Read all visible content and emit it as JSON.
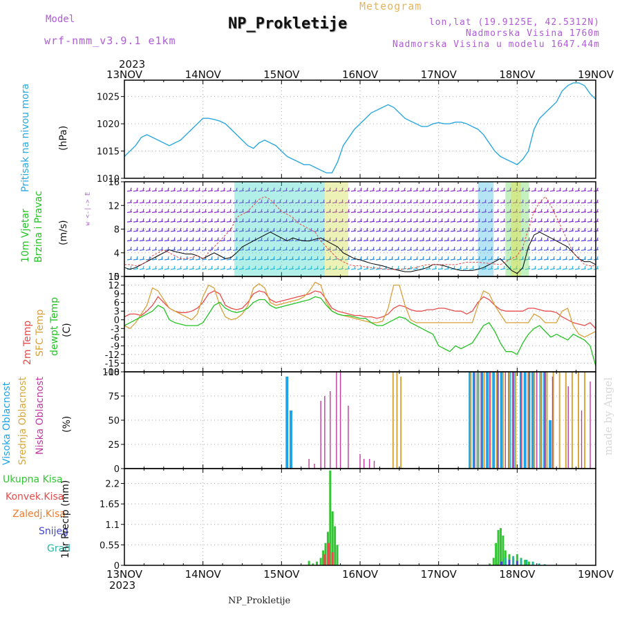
{
  "header": {
    "model_label": "Model",
    "model_name": "wrf-nmm_v3.9.1 e1km",
    "title": "NP_Prokletije",
    "subtitle": "Meteogram",
    "coords": "lon,lat (19.9125E, 42.5312N)",
    "altitude": "Nadmorska Visina 1760m",
    "model_altitude": "Nadmorska Visina u modelu 1647.44m",
    "year_top": "2023",
    "year_bottom": "2023",
    "footer_title": "NP_Prokletije",
    "watermark": "made by Angel"
  },
  "time_axis": {
    "labels": [
      "13NOV",
      "14NOV",
      "15NOV",
      "16NOV",
      "17NOV",
      "18NOV",
      "19NOV"
    ]
  },
  "panel_labels": {
    "pressure": [
      "Pritisak na nivou mora",
      "(hPa)"
    ],
    "wind": [
      "10m Vjetar",
      "Brzina i Pravac",
      "(m/s)"
    ],
    "wind_compass": "w <-|-> E",
    "wind_compass2": "s<-|->N",
    "temp": [
      "2m Temp",
      "SFC Temp",
      "dewpt Temp",
      "(C)"
    ],
    "cloud": [
      "Visoka Oblacnost",
      "Srednja Oblacnost",
      "Niska Oblacnost",
      "(%)"
    ],
    "precip": [
      "Ukupna Kisa",
      "Konvek.Kisa",
      "Zaledj.Kisa",
      "Snijeg",
      "Grad"
    ],
    "precip_unit": "1hr Precip (mm)"
  },
  "colors": {
    "pressure": "#2aa7e0",
    "temp2m": "#e84a4a",
    "sfc": "#d9a03a",
    "dew": "#22c322",
    "cloud_high": "#1fa4e8",
    "cloud_mid": "#d9a63a",
    "cloud_low": "#c0399e",
    "rain": "#33c433",
    "conv": "#e84a4a",
    "frz": "#f07a2a",
    "snow": "#4545d8",
    "grad": "#22b5a5",
    "title_purple": "#b05ad8"
  },
  "chart_data": [
    {
      "type": "line",
      "title": "Pritisak na nivou mora",
      "ylabel": "(hPa)",
      "ylim": [
        1010,
        1028
      ],
      "yticks": [
        1010,
        1015,
        1020,
        1025
      ],
      "series": [
        {
          "values": [
            1014,
            1015,
            1016,
            1017.5,
            1018,
            1017.5,
            1017,
            1016.5,
            1016,
            1016.5,
            1017,
            1018,
            1019,
            1020,
            1021,
            1021,
            1020.8,
            1020.5,
            1020,
            1019,
            1018,
            1017,
            1016,
            1015.5,
            1016.5,
            1017,
            1016.5,
            1016,
            1015,
            1014,
            1013.5,
            1013,
            1012.5,
            1012.5,
            1012,
            1011.5,
            1011,
            1011,
            1013,
            1016,
            1017.5,
            1019,
            1020,
            1021,
            1022,
            1022.5,
            1023,
            1023.5,
            1023,
            1022,
            1021,
            1020.5,
            1020,
            1019.5,
            1019.5,
            1020,
            1020.2,
            1020,
            1020,
            1020.3,
            1020.3,
            1020,
            1019.5,
            1019,
            1018,
            1016.5,
            1015,
            1014,
            1013.5,
            1013,
            1012.5,
            1013.5,
            1015,
            1019,
            1021,
            1022,
            1023,
            1024,
            1026,
            1027,
            1027.5,
            1027.5,
            1027,
            1025.5,
            1024.5
          ]
        }
      ]
    },
    {
      "type": "line",
      "title": "10m Vjetar Brzina i Pravac",
      "ylabel": "(m/s)",
      "ylim": [
        0,
        16
      ],
      "yticks": [
        0,
        4,
        8,
        12,
        16
      ],
      "series": [
        {
          "values": [
            1.5,
            1.2,
            1.5,
            2,
            2.5,
            3,
            3.5,
            4,
            4.5,
            4.2,
            4,
            3.8,
            3.8,
            3.5,
            3,
            3.5,
            4,
            3.5,
            3,
            3.2,
            4,
            5,
            5.5,
            6,
            6.5,
            7,
            7.5,
            7,
            6.5,
            6,
            6.5,
            6.2,
            6,
            6,
            6.3,
            6.5,
            6,
            5.5,
            5,
            4,
            3.5,
            3,
            2.8,
            2.5,
            2.2,
            2,
            1.8,
            1.5,
            1.2,
            1,
            0.8,
            0.8,
            1,
            1.2,
            1.5,
            2,
            2,
            1.8,
            1.5,
            1.2,
            1,
            1,
            1,
            1.2,
            1.5,
            2,
            2.5,
            3,
            2,
            1,
            0.5,
            1.5,
            5,
            7,
            7.5,
            7,
            6.5,
            6,
            5.5,
            5,
            4,
            3,
            2.5,
            2.5,
            2
          ]
        },
        {
          "values": [
            2,
            2,
            1.8,
            2,
            2.5,
            3.5,
            4,
            4.5,
            4,
            3.5,
            3,
            3,
            3.2,
            3.5,
            3,
            4,
            5,
            6,
            7,
            8,
            10,
            10.5,
            11,
            12,
            13,
            13.5,
            13,
            12,
            11,
            10.5,
            10,
            9,
            8.5,
            8,
            7.5,
            6,
            5,
            4,
            3,
            2.5,
            2,
            1.8,
            1.8,
            1.6,
            1.5,
            1.4,
            1.3,
            1.2,
            1.2,
            1.2,
            1.3,
            1.4,
            1.5,
            1.8,
            2,
            2,
            2,
            2,
            2,
            2,
            2.2,
            2.4,
            2.4,
            2.4,
            2.3,
            2.2,
            2.1,
            2,
            2.5,
            3,
            3.5,
            5,
            8,
            11,
            12.5,
            13.5,
            12,
            10,
            8,
            6,
            4,
            3,
            2,
            1.8,
            1.8
          ]
        }
      ]
    },
    {
      "type": "line",
      "title": "2m Temp / SFC Temp / dewpt Temp",
      "ylabel": "(C)",
      "ylim": [
        -18,
        15
      ],
      "yticks": [
        -18,
        -15,
        -12,
        -9,
        -6,
        -3,
        0,
        3,
        6,
        9,
        12,
        15
      ],
      "series": [
        {
          "name": "2m Temp",
          "values": [
            1,
            2,
            2,
            1.5,
            3,
            5,
            8,
            6,
            4,
            3,
            2.5,
            2.5,
            3,
            4,
            6,
            9,
            10,
            9,
            5,
            4,
            3.5,
            4,
            6,
            9,
            10,
            9.5,
            7,
            6,
            6.5,
            7,
            7.5,
            8,
            8.5,
            9,
            10,
            9.5,
            7,
            4,
            3,
            2.5,
            2,
            1.5,
            1.5,
            1,
            1,
            0.5,
            1,
            2,
            4,
            5,
            4.5,
            3.5,
            3,
            3,
            3.5,
            3.5,
            4,
            4,
            3.5,
            3,
            3,
            2,
            3,
            6,
            8,
            7,
            5,
            3.5,
            3,
            3,
            3,
            3,
            4,
            4,
            3.5,
            3,
            3,
            2.5,
            1,
            0,
            -1,
            -1.5,
            -2,
            -1,
            -3
          ]
        },
        {
          "name": "SFC Temp",
          "values": [
            -2,
            -3,
            -1,
            2,
            5,
            11,
            10,
            7,
            4,
            3,
            2,
            1,
            0,
            2,
            8,
            12,
            11,
            5,
            1,
            0,
            0.5,
            2,
            5,
            11,
            12.5,
            11,
            6,
            5,
            5.5,
            6,
            6.5,
            7,
            8,
            10,
            13,
            12,
            6,
            3,
            2,
            1.5,
            1,
            0.5,
            0,
            -0.5,
            -1,
            -1,
            -0.5,
            4,
            12,
            12,
            5,
            0,
            -1,
            -1,
            -1,
            -1,
            -1,
            -1,
            -1,
            -1,
            -1,
            -1,
            -1,
            5,
            10,
            9,
            5,
            2,
            -1,
            -1,
            -1,
            -1,
            -1,
            2,
            1,
            -1,
            -1,
            -1,
            3,
            4,
            -2,
            -5,
            -6,
            -5,
            -4
          ]
        },
        {
          "name": "dewpt Temp",
          "values": [
            -2,
            -1,
            0,
            1,
            2,
            3,
            5,
            4,
            0,
            -1,
            -1.5,
            -2,
            -2,
            -2,
            -1,
            2,
            5,
            6,
            4,
            3,
            2.5,
            3,
            4,
            6,
            7,
            7,
            5,
            4,
            4.5,
            5,
            5.5,
            6,
            6.5,
            7,
            8,
            7.5,
            5,
            3,
            2,
            1.5,
            1.5,
            1,
            0.5,
            0.5,
            -1,
            -2,
            -2,
            -1,
            0,
            1,
            0.5,
            -1,
            -2,
            -3,
            -4,
            -5,
            -9,
            -10,
            -11,
            -9,
            -10,
            -9,
            -8,
            -5,
            -2,
            -1,
            -4,
            -8,
            -11,
            -11,
            -12,
            -8,
            -5,
            -3,
            -2,
            -4,
            -6,
            -5,
            -6,
            -7,
            -5,
            -6,
            -7,
            -9,
            -16
          ]
        }
      ]
    },
    {
      "type": "bar",
      "title": "Oblacnost",
      "ylabel": "(%)",
      "ylim": [
        0,
        100
      ],
      "yticks": [
        0,
        25,
        50,
        75,
        100
      ],
      "series": [
        {
          "name": "Visoka Oblacnost",
          "values": [
            [
              2.07,
              95
            ],
            [
              2.12,
              60
            ],
            [
              4.4,
              100
            ],
            [
              4.45,
              100
            ],
            [
              4.5,
              100
            ],
            [
              4.55,
              100
            ],
            [
              4.62,
              100
            ],
            [
              4.7,
              100
            ],
            [
              4.75,
              100
            ],
            [
              4.8,
              100
            ],
            [
              4.9,
              100
            ],
            [
              4.95,
              100
            ],
            [
              5.05,
              100
            ],
            [
              5.1,
              100
            ],
            [
              5.15,
              100
            ],
            [
              5.2,
              100
            ],
            [
              5.3,
              100
            ],
            [
              5.35,
              100
            ],
            [
              5.42,
              50
            ]
          ]
        },
        {
          "name": "Srednja Oblacnost",
          "values": [
            [
              3.42,
              100
            ],
            [
              3.47,
              100
            ],
            [
              3.52,
              95
            ],
            [
              4.41,
              100
            ],
            [
              4.5,
              100
            ],
            [
              4.58,
              100
            ],
            [
              4.66,
              100
            ],
            [
              4.74,
              100
            ],
            [
              4.82,
              100
            ],
            [
              4.9,
              100
            ],
            [
              4.98,
              100
            ],
            [
              5.06,
              100
            ],
            [
              5.14,
              100
            ],
            [
              5.22,
              100
            ],
            [
              5.3,
              100
            ],
            [
              5.38,
              100
            ],
            [
              5.46,
              100
            ],
            [
              5.54,
              100
            ],
            [
              5.62,
              100
            ],
            [
              5.7,
              100
            ],
            [
              5.78,
              100
            ],
            [
              5.86,
              100
            ]
          ]
        },
        {
          "name": "Niska Oblacnost",
          "values": [
            [
              2.35,
              10
            ],
            [
              2.42,
              5
            ],
            [
              2.5,
              70
            ],
            [
              2.55,
              75
            ],
            [
              2.62,
              80
            ],
            [
              2.7,
              100
            ],
            [
              2.75,
              100
            ],
            [
              2.85,
              65
            ],
            [
              3.0,
              15
            ],
            [
              3.05,
              10
            ],
            [
              3.12,
              10
            ],
            [
              3.18,
              8
            ],
            [
              4.45,
              100
            ],
            [
              4.55,
              100
            ],
            [
              4.65,
              100
            ],
            [
              4.75,
              100
            ],
            [
              4.85,
              100
            ],
            [
              4.95,
              100
            ],
            [
              5.05,
              100
            ],
            [
              5.15,
              100
            ],
            [
              5.25,
              100
            ],
            [
              5.35,
              100
            ],
            [
              5.45,
              95
            ],
            [
              5.65,
              85
            ],
            [
              5.82,
              60
            ],
            [
              5.93,
              90
            ]
          ]
        }
      ]
    },
    {
      "type": "bar",
      "title": "1hr Precip",
      "ylabel": "1hr Precip (mm)",
      "ylim": [
        0,
        2.6
      ],
      "yticks": [
        0,
        0.55,
        1.1,
        1.65,
        2.2
      ],
      "series": [
        {
          "name": "Ukupna Kisa",
          "values": [
            [
              2.35,
              0.12
            ],
            [
              2.4,
              0.05
            ],
            [
              2.45,
              0.1
            ],
            [
              2.5,
              0.2
            ],
            [
              2.53,
              0.4
            ],
            [
              2.56,
              0.6
            ],
            [
              2.59,
              0.9
            ],
            [
              2.62,
              2.55
            ],
            [
              2.65,
              1.45
            ],
            [
              2.68,
              1.05
            ],
            [
              2.71,
              0.55
            ],
            [
              4.65,
              0.05
            ],
            [
              4.7,
              0.2
            ],
            [
              4.73,
              0.6
            ],
            [
              4.76,
              0.95
            ],
            [
              4.79,
              1.0
            ],
            [
              4.82,
              0.8
            ],
            [
              4.85,
              0.4
            ],
            [
              4.9,
              0.3
            ],
            [
              4.95,
              0.2
            ],
            [
              5.0,
              0.3
            ],
            [
              5.05,
              0.2
            ],
            [
              5.1,
              0.15
            ],
            [
              5.15,
              0.1
            ],
            [
              5.2,
              0.05
            ]
          ]
        },
        {
          "name": "Konvek.Kisa",
          "values": [
            [
              2.55,
              0.3
            ],
            [
              2.6,
              0.6
            ],
            [
              2.65,
              0.35
            ]
          ]
        },
        {
          "name": "Zaledj.Kisa",
          "values": []
        },
        {
          "name": "Snijeg",
          "values": [
            [
              4.8,
              0.1
            ],
            [
              4.9,
              0.15
            ],
            [
              5.0,
              0.12
            ]
          ]
        },
        {
          "name": "Grad",
          "values": [
            [
              4.85,
              0.2
            ],
            [
              4.95,
              0.25
            ],
            [
              5.05,
              0.18
            ],
            [
              5.12,
              0.15
            ],
            [
              5.2,
              0.1
            ],
            [
              5.28,
              0.05
            ],
            [
              5.35,
              0.03
            ]
          ]
        }
      ]
    }
  ]
}
